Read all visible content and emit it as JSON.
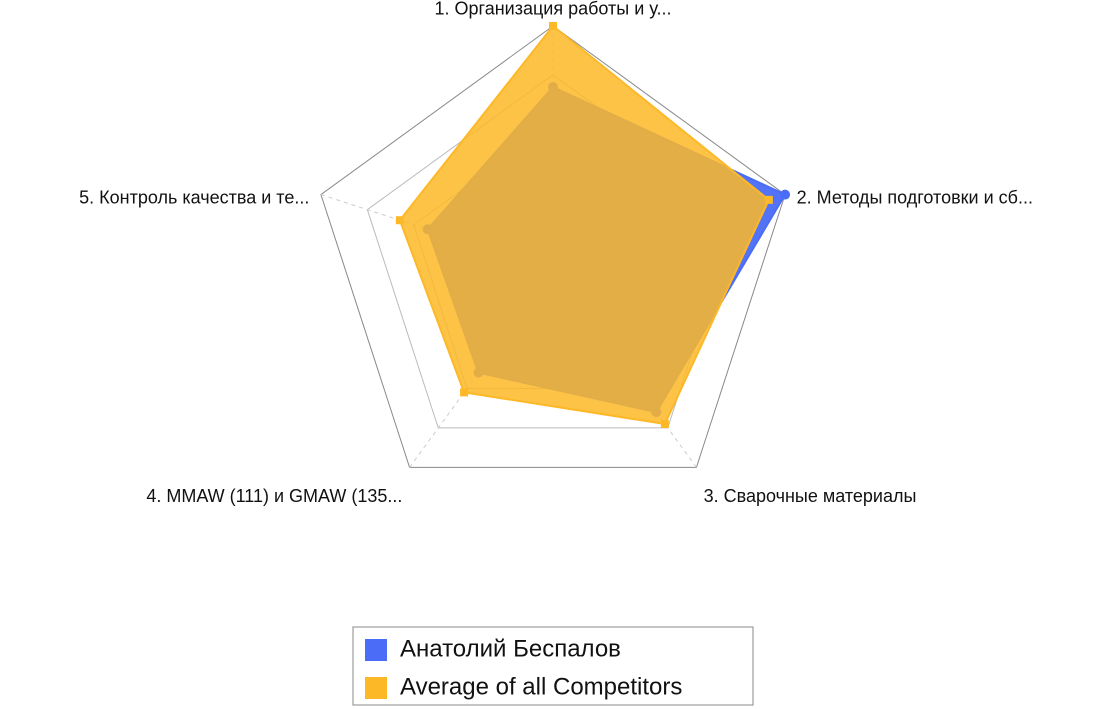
{
  "chart_data": {
    "type": "radar",
    "categories": [
      "1. Организация работы и у...",
      "2. Методы подготовки и сб...",
      "3. Сварочные материалы",
      "4. MMAW (111) и GMAW (135...",
      "5. Контроль качества и те..."
    ],
    "series": [
      {
        "name": "Анатолий Беспалов",
        "color": "#4a6cf7",
        "values": [
          75,
          100,
          72,
          52,
          54
        ]
      },
      {
        "name": "Average of all Competitors",
        "color": "#fdb827",
        "values": [
          100,
          93,
          78,
          62,
          66
        ]
      }
    ],
    "rlim": [
      0,
      100
    ],
    "rticks": [
      20,
      40,
      60,
      80,
      100
    ],
    "grid": true,
    "legend": "bottom"
  }
}
